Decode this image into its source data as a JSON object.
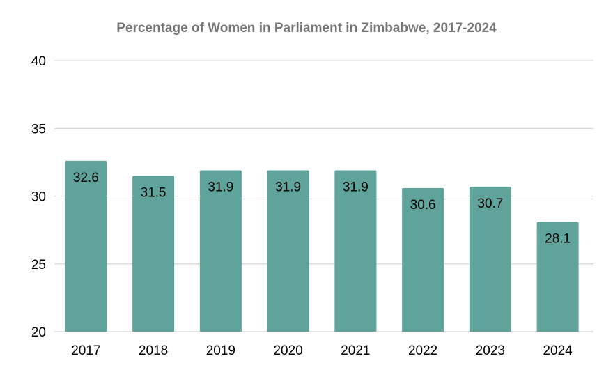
{
  "chart_data": {
    "type": "bar",
    "title": "Percentage of Women in Parliament in Zimbabwe, 2017-2024",
    "xlabel": "",
    "ylabel": "",
    "categories": [
      "2017",
      "2018",
      "2019",
      "2020",
      "2021",
      "2022",
      "2023",
      "2024"
    ],
    "values": [
      32.6,
      31.5,
      31.9,
      31.9,
      31.9,
      30.6,
      30.7,
      28.1
    ],
    "data_labels": [
      "32.6",
      "31.5",
      "31.9",
      "31.9",
      "31.9",
      "30.6",
      "30.7",
      "28.1"
    ],
    "ylim": [
      20,
      40
    ],
    "yticks": [
      "20",
      "25",
      "30",
      "35",
      "40"
    ],
    "grid": true,
    "legend": "none",
    "bar_color": "#5fa39a"
  }
}
